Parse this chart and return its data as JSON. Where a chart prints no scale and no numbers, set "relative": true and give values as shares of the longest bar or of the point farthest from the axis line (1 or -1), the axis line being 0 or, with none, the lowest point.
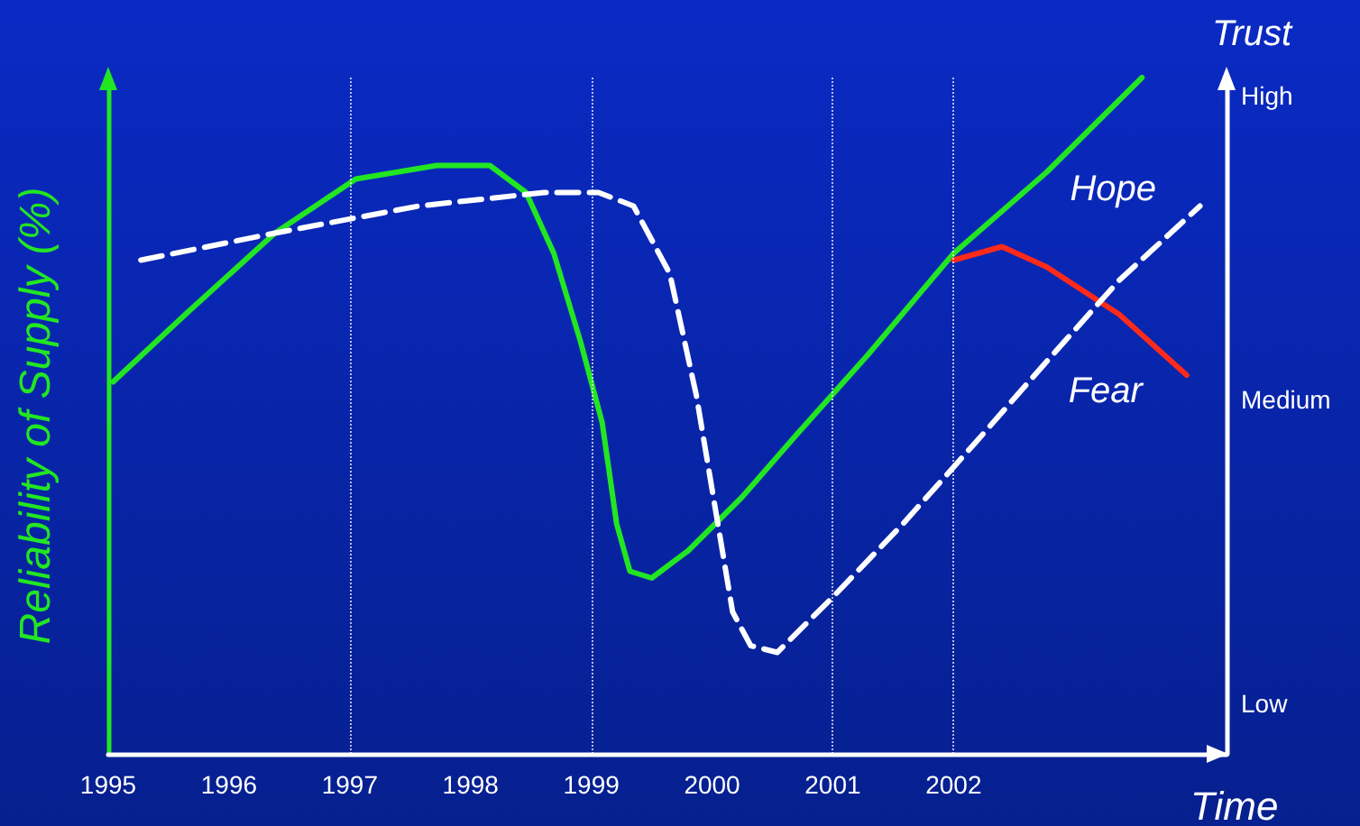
{
  "chart_data": {
    "type": "line",
    "relative": true,
    "marker": "none",
    "xlabel": "Time",
    "ylabel": "Reliability of Supply (%)",
    "y2label": "Trust",
    "xlim": [
      1995,
      2004.26
    ],
    "xticks": [
      1995,
      1996,
      1997,
      1998,
      1999,
      2000,
      2001,
      2002
    ],
    "series": [
      {
        "color": "#22e622",
        "line_style": "solid",
        "x": [
          1995.04,
          1995.64,
          1996.38,
          1997.05,
          1997.72,
          1998.16,
          1998.46,
          1998.69,
          1998.91,
          1999.09,
          1999.21,
          1999.32,
          1999.5,
          1999.8,
          2000.25,
          2000.69,
          2001.29,
          2002.0,
          2002.77,
          2003.56
        ],
        "values": [
          0.55,
          0.65,
          0.77,
          0.85,
          0.87,
          0.87,
          0.83,
          0.74,
          0.61,
          0.49,
          0.34,
          0.27,
          0.26,
          0.3,
          0.38,
          0.47,
          0.59,
          0.74,
          0.86,
          1.0
        ]
      },
      {
        "color": "#ff2a1a",
        "line_style": "solid",
        "x": [
          2002.0,
          2002.4,
          2002.77,
          2003.37,
          2003.93
        ],
        "values": [
          0.73,
          0.75,
          0.72,
          0.65,
          0.56
        ]
      },
      {
        "color": "#ffffff",
        "line_style": "dashed",
        "x": [
          1995.27,
          1996.38,
          1997.57,
          1998.61,
          1999.06,
          1999.35,
          1999.65,
          1999.87,
          2000.02,
          2000.17,
          2000.32,
          2000.54,
          2000.99,
          2001.58,
          2002.18,
          2002.77,
          2003.37,
          2004.04
        ],
        "values": [
          0.73,
          0.77,
          0.81,
          0.83,
          0.83,
          0.81,
          0.71,
          0.53,
          0.37,
          0.21,
          0.16,
          0.15,
          0.23,
          0.34,
          0.46,
          0.58,
          0.7,
          0.81
        ]
      }
    ],
    "ref_lines": [
      {
        "axis": "x",
        "value": 1997,
        "color": "#ffffff",
        "line_style": "dotted"
      },
      {
        "axis": "x",
        "value": 1999,
        "color": "#ffffff",
        "line_style": "dotted"
      },
      {
        "axis": "x",
        "value": 2001,
        "color": "#ffffff",
        "line_style": "dotted"
      },
      {
        "axis": "x",
        "value": 2002,
        "color": "#ffffff",
        "line_style": "dotted"
      }
    ],
    "annotations": [
      "Low",
      "Medium",
      "High",
      "Hope",
      "Fear"
    ]
  }
}
